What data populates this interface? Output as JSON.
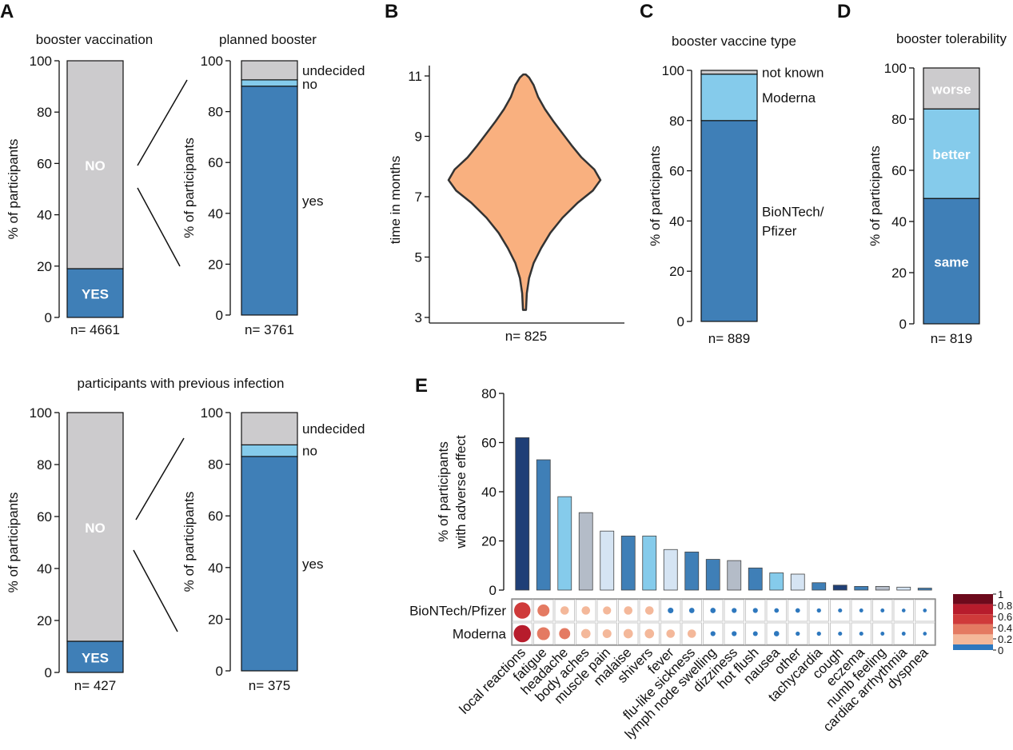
{
  "panel_labels": {
    "A": "A",
    "B": "B",
    "C": "C",
    "D": "D",
    "E": "E"
  },
  "chart_data": [
    {
      "id": "A1",
      "type": "bar",
      "stacked": true,
      "title": "booster vaccination",
      "ylabel": "% of participants",
      "ylim": [
        0,
        100
      ],
      "yticks": [
        "0",
        "20",
        "40",
        "60",
        "80",
        "100"
      ],
      "n_label": "n= 4661",
      "segments": [
        {
          "label": "YES",
          "value": 19,
          "color": "#3f7fb7",
          "label_style": "inside"
        },
        {
          "label": "NO",
          "value": 81,
          "color": "#cccbcd",
          "label_style": "inside"
        }
      ]
    },
    {
      "id": "A2",
      "type": "bar",
      "stacked": true,
      "title": "planned booster",
      "ylabel": "% of participants",
      "ylim": [
        0,
        100
      ],
      "yticks": [
        "0",
        "20",
        "40",
        "60",
        "80",
        "100"
      ],
      "n_label": "n= 3761",
      "segments": [
        {
          "label": "yes",
          "value": 90,
          "color": "#3f7fb7",
          "label_style": "right"
        },
        {
          "label": "no",
          "value": 2.5,
          "color": "#85cbeb",
          "label_style": "right"
        },
        {
          "label": "undecided",
          "value": 7.5,
          "color": "#cccbcd",
          "label_style": "right"
        }
      ]
    },
    {
      "id": "A3",
      "type": "bar",
      "stacked": true,
      "title": "participants with previous infection",
      "ylabel": "% of participants",
      "ylim": [
        0,
        100
      ],
      "yticks": [
        "0",
        "20",
        "40",
        "60",
        "80",
        "100"
      ],
      "n_label": "n= 427",
      "segments": [
        {
          "label": "YES",
          "value": 12,
          "color": "#3f7fb7",
          "label_style": "inside"
        },
        {
          "label": "NO",
          "value": 88,
          "color": "#cccbcd",
          "label_style": "inside"
        }
      ]
    },
    {
      "id": "A4",
      "type": "bar",
      "stacked": true,
      "title": "",
      "ylabel": "% of participants",
      "ylim": [
        0,
        100
      ],
      "yticks": [
        "0",
        "20",
        "40",
        "60",
        "80",
        "100"
      ],
      "n_label": "n= 375",
      "segments": [
        {
          "label": "yes",
          "value": 83,
          "color": "#3f7fb7",
          "label_style": "right"
        },
        {
          "label": "no",
          "value": 4.5,
          "color": "#85cbeb",
          "label_style": "right"
        },
        {
          "label": "undecided",
          "value": 12.5,
          "color": "#cccbcd",
          "label_style": "right"
        }
      ]
    },
    {
      "id": "B",
      "type": "violin",
      "title": "",
      "ylabel": "time in months",
      "ylim": [
        3,
        11
      ],
      "yticks": [
        "3",
        "5",
        "7",
        "9",
        "11"
      ],
      "n_label": "n= 825",
      "color": "#f9b07f",
      "profile": [
        {
          "y": 3.25,
          "w": 0.02
        },
        {
          "y": 3.8,
          "w": 0.03
        },
        {
          "y": 4.3,
          "w": 0.06
        },
        {
          "y": 4.8,
          "w": 0.12
        },
        {
          "y": 5.3,
          "w": 0.22
        },
        {
          "y": 5.8,
          "w": 0.34
        },
        {
          "y": 6.3,
          "w": 0.5
        },
        {
          "y": 6.8,
          "w": 0.7
        },
        {
          "y": 7.2,
          "w": 0.9
        },
        {
          "y": 7.55,
          "w": 1.0
        },
        {
          "y": 7.9,
          "w": 0.92
        },
        {
          "y": 8.3,
          "w": 0.75
        },
        {
          "y": 8.7,
          "w": 0.62
        },
        {
          "y": 9.1,
          "w": 0.5
        },
        {
          "y": 9.5,
          "w": 0.38
        },
        {
          "y": 9.9,
          "w": 0.27
        },
        {
          "y": 10.3,
          "w": 0.18
        },
        {
          "y": 10.7,
          "w": 0.12
        },
        {
          "y": 10.95,
          "w": 0.06
        },
        {
          "y": 11.05,
          "w": 0.0
        }
      ]
    },
    {
      "id": "C",
      "type": "bar",
      "stacked": true,
      "title": "booster vaccine type",
      "ylabel": "% of participants",
      "ylim": [
        0,
        100
      ],
      "yticks": [
        "0",
        "20",
        "40",
        "60",
        "80",
        "100"
      ],
      "n_label": "n= 889",
      "segments": [
        {
          "label": "BioNTech/\nPfizer",
          "value": 80,
          "color": "#3f7fb7",
          "label_style": "right"
        },
        {
          "label": "Moderna",
          "value": 18.5,
          "color": "#85cbeb",
          "label_style": "right"
        },
        {
          "label": "not known",
          "value": 1.5,
          "color": "#cccbcd",
          "label_style": "right"
        }
      ]
    },
    {
      "id": "D",
      "type": "bar",
      "stacked": true,
      "title": "booster tolerability",
      "ylabel": "% of participants",
      "ylim": [
        0,
        100
      ],
      "yticks": [
        "0",
        "20",
        "40",
        "60",
        "80",
        "100"
      ],
      "n_label": "n= 819",
      "segments": [
        {
          "label": "same",
          "value": 49,
          "color": "#3f7fb7",
          "label_style": "inside"
        },
        {
          "label": "better",
          "value": 35,
          "color": "#85cbeb",
          "label_style": "inside"
        },
        {
          "label": "worse",
          "value": 16,
          "color": "#cccbcd",
          "label_style": "inside"
        }
      ]
    },
    {
      "id": "E",
      "type": "bar",
      "ylabel_lines": [
        "% of participants",
        "with adverse effect"
      ],
      "ylim": [
        0,
        80
      ],
      "yticks": [
        "0",
        "20",
        "40",
        "60",
        "80"
      ],
      "categories": [
        "local reactions",
        "fatigue",
        "headache",
        "body aches",
        "muscle pain",
        "malaise",
        "shivers",
        "fever",
        "flu-like sickness",
        "lymph node swelling",
        "dizziness",
        "hot flush",
        "nausea",
        "other",
        "tachycardia",
        "cough",
        "eczema",
        "numb feeling",
        "cardiac arrhythmia",
        "dyspnea"
      ],
      "values": [
        62,
        53,
        38,
        31.5,
        24,
        22,
        22,
        16.5,
        15.5,
        12.5,
        12,
        9,
        7,
        6.5,
        3,
        2,
        1.5,
        1.5,
        1.2,
        0.8
      ],
      "bar_colors": [
        "#1f3f77",
        "#3f7fb7",
        "#85cbeb",
        "#b4bcc8",
        "#d5e4f3",
        "#3f7fb7",
        "#85cbeb",
        "#d5e4f3",
        "#3f7fb7",
        "#3f7fb7",
        "#b4bcc8",
        "#3f7fb7",
        "#85cbeb",
        "#d5e4f3",
        "#3f7fb7",
        "#1f3f77",
        "#3f7fb7",
        "#b4bcc8",
        "#d5e4f3",
        "#3f7fb7"
      ],
      "dot_rows": [
        {
          "name": "BioNTech/Pfizer",
          "values": [
            0.75,
            0.5,
            0.3,
            0.3,
            0.28,
            0.3,
            0.3,
            0.14,
            0.12,
            0.12,
            0.1,
            0.1,
            0.08,
            0.08,
            0.06,
            0.05,
            0.04,
            0.04,
            0.03,
            0.03
          ]
        },
        {
          "name": "Moderna",
          "values": [
            0.8,
            0.55,
            0.45,
            0.35,
            0.32,
            0.35,
            0.35,
            0.3,
            0.3,
            0.1,
            0.1,
            0.09,
            0.12,
            0.06,
            0.06,
            0.05,
            0.05,
            0.04,
            0.04,
            0.03
          ]
        }
      ],
      "colorbar": {
        "ticks": [
          "0",
          "0.2",
          "0.4",
          "0.6",
          "0.8",
          "1"
        ],
        "colors": [
          "#2e78be",
          "#f4b89a",
          "#e47a62",
          "#cf3a3a",
          "#b71c2c",
          "#6d0a1c"
        ]
      }
    }
  ]
}
